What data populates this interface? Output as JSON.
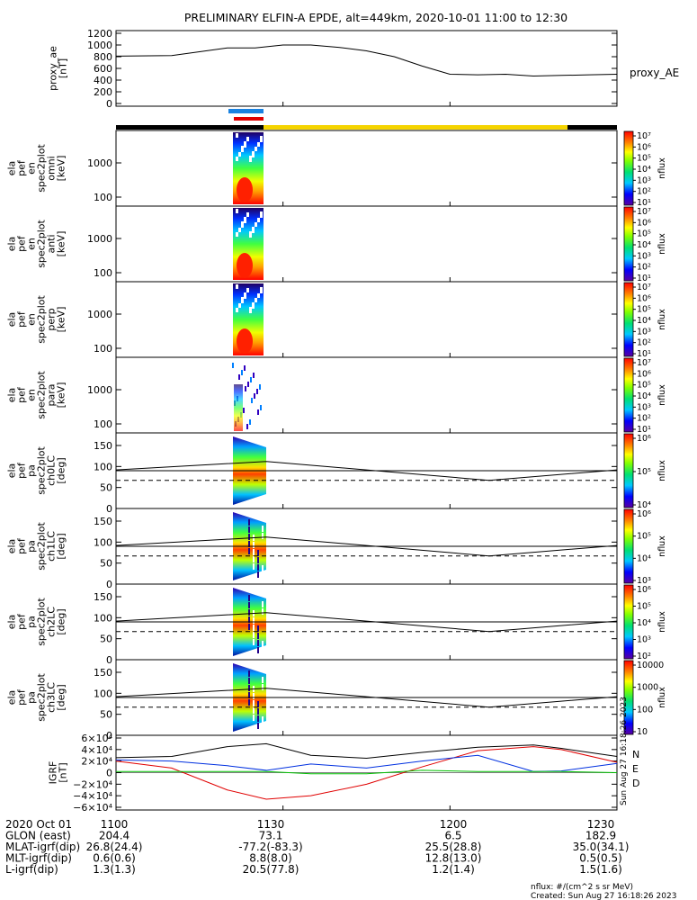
{
  "title": "PRELIMINARY ELFIN-A EPDE, alt=449km, 2020-10-01 11:00 to 12:30",
  "colors": {
    "bar_yellow": "#f5d400",
    "bar_black": "#000000",
    "bar_blue": "#1a82e0",
    "bar_red": "#e00000",
    "igrf_n": "#e00000",
    "igrf_e": "#00c000",
    "igrf_d": "#0030e0"
  },
  "chart_data": [
    {
      "type": "line",
      "id": "proxy_ae",
      "ylabel_lines": [
        "proxy_ae",
        "[nT]"
      ],
      "yticks": [
        "1200",
        "1000",
        "800",
        "600",
        "400",
        "200",
        "0"
      ],
      "ylim": [
        0,
        1200
      ],
      "legend": "proxy_AE",
      "x_minutes": [
        0,
        10,
        20,
        25,
        30,
        35,
        40,
        45,
        50,
        55,
        60,
        65,
        70,
        75,
        80,
        85,
        90
      ],
      "values": [
        810,
        820,
        950,
        950,
        1000,
        1000,
        960,
        900,
        800,
        640,
        500,
        490,
        500,
        470,
        480,
        490,
        500
      ]
    },
    {
      "type": "heatmap",
      "id": "en_omni",
      "ylabel_lines": [
        "ela",
        "pef",
        "en",
        "spec2plot",
        "omni",
        "[keV]"
      ],
      "yticks": [
        "1000",
        "100"
      ],
      "colorbar_ticks": [
        "10⁷",
        "10⁶",
        "10⁵",
        "10⁴",
        "10³",
        "10²",
        "10¹"
      ],
      "colorbar_label": "nflux"
    },
    {
      "type": "heatmap",
      "id": "en_anti",
      "ylabel_lines": [
        "ela",
        "pef",
        "en",
        "spec2plot",
        "anti",
        "[keV]"
      ],
      "yticks": [
        "1000",
        "100"
      ],
      "colorbar_ticks": [
        "10⁷",
        "10⁶",
        "10⁵",
        "10⁴",
        "10³",
        "10²",
        "10¹"
      ],
      "colorbar_label": "nflux"
    },
    {
      "type": "heatmap",
      "id": "en_perp",
      "ylabel_lines": [
        "ela",
        "pef",
        "en",
        "spec2plot",
        "perp",
        "[keV]"
      ],
      "yticks": [
        "1000",
        "100"
      ],
      "colorbar_ticks": [
        "10⁷",
        "10⁶",
        "10⁵",
        "10⁴",
        "10³",
        "10²",
        "10¹"
      ],
      "colorbar_label": "nflux"
    },
    {
      "type": "heatmap",
      "id": "en_para",
      "ylabel_lines": [
        "ela",
        "pef",
        "en",
        "spec2plot",
        "para",
        "[keV]"
      ],
      "yticks": [
        "1000",
        "100"
      ],
      "colorbar_ticks": [
        "10⁷",
        "10⁶",
        "10⁵",
        "10⁴",
        "10³",
        "10²",
        "10¹"
      ],
      "colorbar_label": "nflux"
    },
    {
      "type": "heatmap",
      "id": "pa_ch0",
      "ylabel_lines": [
        "ela",
        "pef",
        "pa",
        "spec2plot",
        "ch0LC",
        "[deg]"
      ],
      "yticks": [
        "150",
        "100",
        "50",
        "0"
      ],
      "ylim": [
        0,
        180
      ],
      "colorbar_ticks": [
        "10⁶",
        "10⁵",
        "10⁴"
      ],
      "colorbar_label": "nflux"
    },
    {
      "type": "heatmap",
      "id": "pa_ch1",
      "ylabel_lines": [
        "ela",
        "pef",
        "pa",
        "spec2plot",
        "ch1LC",
        "[deg]"
      ],
      "yticks": [
        "150",
        "100",
        "50",
        "0"
      ],
      "ylim": [
        0,
        180
      ],
      "colorbar_ticks": [
        "10⁶",
        "10⁵",
        "10⁴",
        "10³"
      ],
      "colorbar_label": "nflux"
    },
    {
      "type": "heatmap",
      "id": "pa_ch2",
      "ylabel_lines": [
        "ela",
        "pef",
        "pa",
        "spec2plot",
        "ch2LC",
        "[deg]"
      ],
      "yticks": [
        "150",
        "100",
        "50",
        "0"
      ],
      "ylim": [
        0,
        180
      ],
      "colorbar_ticks": [
        "10⁶",
        "10⁵",
        "10⁴",
        "10³",
        "10²"
      ],
      "colorbar_label": "nflux"
    },
    {
      "type": "heatmap",
      "id": "pa_ch3",
      "ylabel_lines": [
        "ela",
        "pef",
        "pa",
        "spec2plot",
        "ch3LC",
        "[deg]"
      ],
      "yticks": [
        "150",
        "100",
        "50",
        "0"
      ],
      "ylim": [
        0,
        180
      ],
      "colorbar_ticks": [
        "10000",
        "1000",
        "100",
        "10"
      ],
      "colorbar_label": "nflux"
    },
    {
      "type": "line",
      "id": "igrf",
      "ylabel_lines": [
        "IGRF",
        "[nT]"
      ],
      "yticks": [
        "6×10⁴",
        "4×10⁴",
        "2×10⁴",
        "0",
        "−2×10⁴",
        "−4×10⁴",
        "−6×10⁴"
      ],
      "ylim": [
        -60000,
        60000
      ],
      "legend_labels": [
        "N",
        "E",
        "D"
      ],
      "side_note": "Sun Aug 27 16:18:26 2023",
      "x_minutes": [
        0,
        10,
        20,
        27,
        35,
        45,
        55,
        65,
        75,
        80,
        90
      ],
      "series": [
        {
          "values": [
            20000,
            8000,
            -30000,
            -46000,
            -40000,
            -20000,
            10000,
            38000,
            45000,
            40000,
            18000
          ]
        },
        {
          "values": [
            22000,
            20000,
            12000,
            4000,
            15000,
            8000,
            20000,
            30000,
            2000,
            3000,
            16000
          ]
        },
        {
          "values": [
            2000,
            2000,
            2000,
            2000,
            -2000,
            -2000,
            4000,
            2000,
            2000,
            2000,
            0
          ]
        },
        {
          "values": [
            26000,
            28000,
            45000,
            50000,
            30000,
            25000,
            35000,
            44000,
            48000,
            42000,
            28000
          ]
        }
      ]
    }
  ],
  "time_axis": {
    "ticks": [
      {
        "label": "1100",
        "min": 0
      },
      {
        "label": "1130",
        "min": 30
      },
      {
        "label": "1200",
        "min": 60
      },
      {
        "label": "1230",
        "min": 90
      }
    ],
    "rows": [
      {
        "label": "2020 Oct 01",
        "values": [
          "1100",
          "1130",
          "1200",
          "1230"
        ]
      },
      {
        "label": "GLON (east)",
        "values": [
          "204.4",
          "73.1",
          "6.5",
          "182.9"
        ]
      },
      {
        "label": "MLAT-igrf(dip)",
        "values": [
          "26.8(24.4)",
          "-77.2(-83.3)",
          "25.5(28.8)",
          "35.0(34.1)"
        ]
      },
      {
        "label": "MLT-igrf(dip)",
        "values": [
          "0.6(0.6)",
          "8.8(8.0)",
          "12.8(13.0)",
          "0.5(0.5)"
        ]
      },
      {
        "label": "L-igrf(dip)",
        "values": [
          "1.3(1.3)",
          "20.5(77.8)",
          "1.2(1.4)",
          "1.5(1.6)"
        ]
      }
    ]
  },
  "footer": {
    "units": "nflux: #/(cm^2 s sr MeV)",
    "created": "Created: Sun Aug 27 16:18:26 2023"
  }
}
